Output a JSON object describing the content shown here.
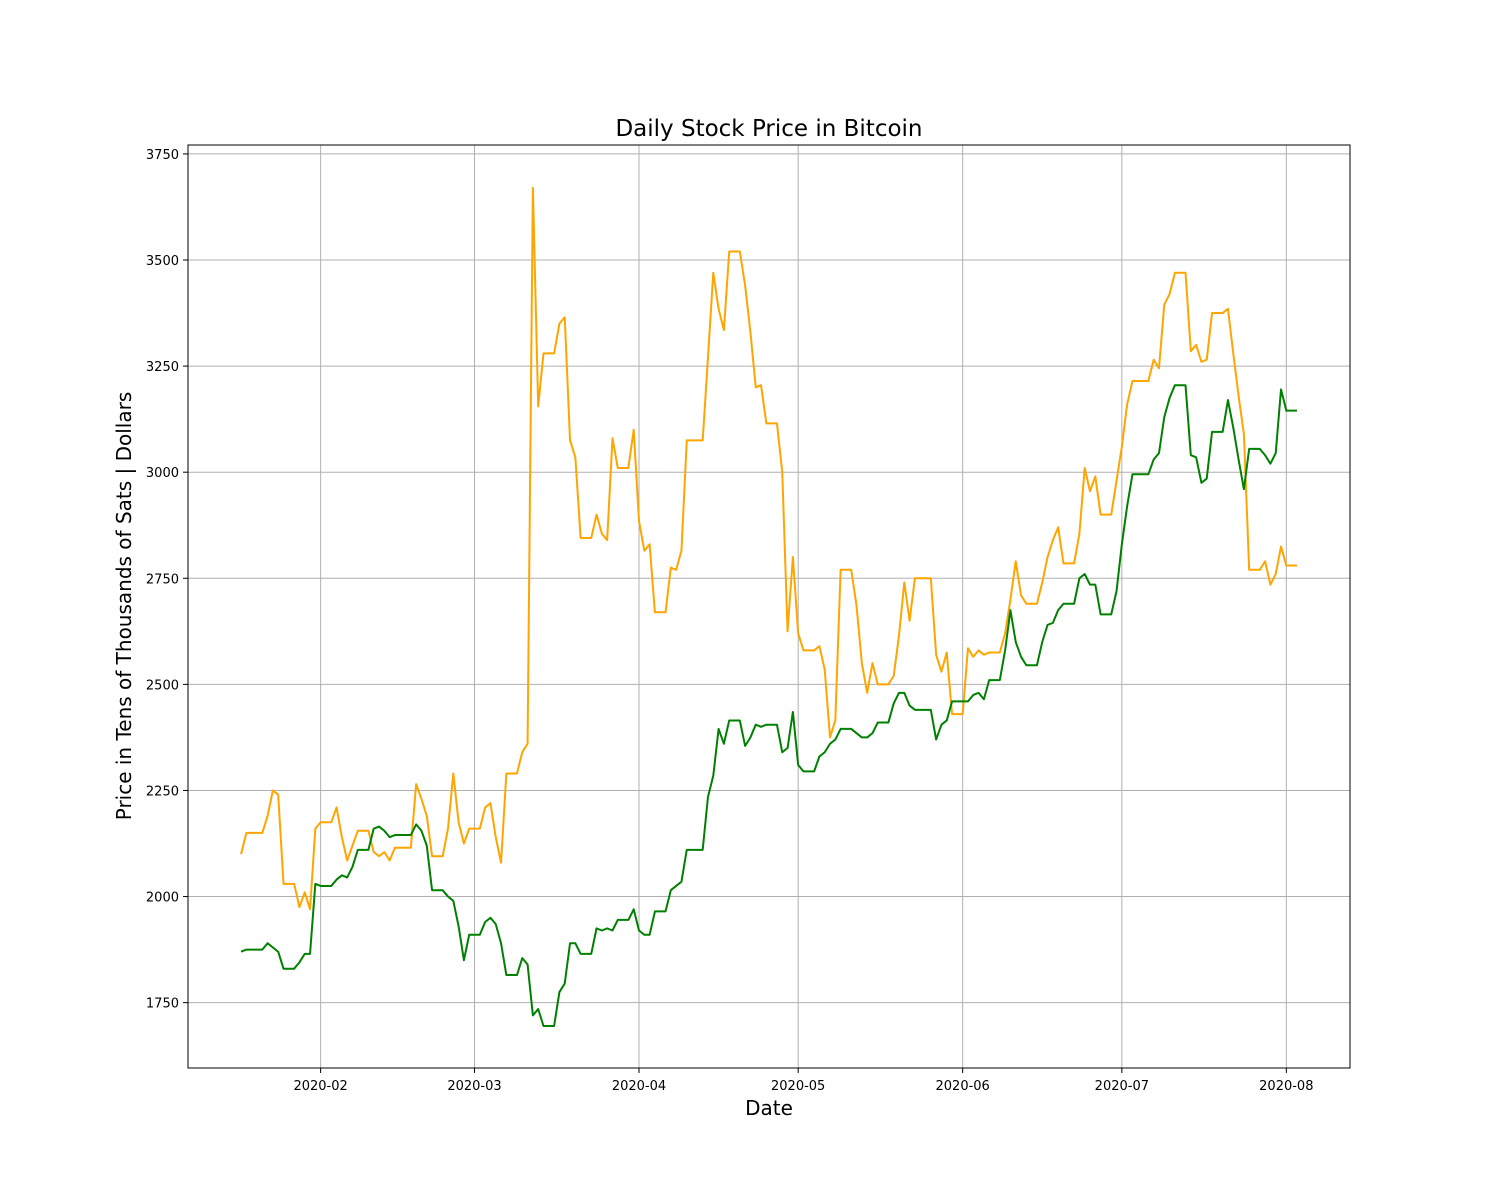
{
  "chart_data": {
    "type": "line",
    "title": "Daily Stock Price in Bitcoin",
    "x_label": "Date",
    "y_label": "Price in Tens of Thousands of Sats | Dollars",
    "x": [
      "2020-01-17",
      "2020-01-18",
      "2020-01-19",
      "2020-01-20",
      "2020-01-21",
      "2020-01-22",
      "2020-01-23",
      "2020-01-24",
      "2020-01-25",
      "2020-01-26",
      "2020-01-27",
      "2020-01-28",
      "2020-01-29",
      "2020-01-30",
      "2020-01-31",
      "2020-02-01",
      "2020-02-02",
      "2020-02-03",
      "2020-02-04",
      "2020-02-05",
      "2020-02-06",
      "2020-02-07",
      "2020-02-08",
      "2020-02-09",
      "2020-02-10",
      "2020-02-11",
      "2020-02-12",
      "2020-02-13",
      "2020-02-14",
      "2020-02-15",
      "2020-02-16",
      "2020-02-17",
      "2020-02-18",
      "2020-02-19",
      "2020-02-20",
      "2020-02-21",
      "2020-02-22",
      "2020-02-23",
      "2020-02-24",
      "2020-02-25",
      "2020-02-26",
      "2020-02-27",
      "2020-02-28",
      "2020-02-29",
      "2020-03-01",
      "2020-03-02",
      "2020-03-03",
      "2020-03-04",
      "2020-03-05",
      "2020-03-06",
      "2020-03-07",
      "2020-03-08",
      "2020-03-09",
      "2020-03-10",
      "2020-03-11",
      "2020-03-12",
      "2020-03-13",
      "2020-03-14",
      "2020-03-15",
      "2020-03-16",
      "2020-03-17",
      "2020-03-18",
      "2020-03-19",
      "2020-03-20",
      "2020-03-21",
      "2020-03-22",
      "2020-03-23",
      "2020-03-24",
      "2020-03-25",
      "2020-03-26",
      "2020-03-27",
      "2020-03-28",
      "2020-03-29",
      "2020-03-30",
      "2020-03-31",
      "2020-04-01",
      "2020-04-02",
      "2020-04-03",
      "2020-04-04",
      "2020-04-05",
      "2020-04-06",
      "2020-04-07",
      "2020-04-08",
      "2020-04-09",
      "2020-04-10",
      "2020-04-11",
      "2020-04-12",
      "2020-04-13",
      "2020-04-14",
      "2020-04-15",
      "2020-04-16",
      "2020-04-17",
      "2020-04-18",
      "2020-04-19",
      "2020-04-20",
      "2020-04-21",
      "2020-04-22",
      "2020-04-23",
      "2020-04-24",
      "2020-04-25",
      "2020-04-26",
      "2020-04-27",
      "2020-04-28",
      "2020-04-29",
      "2020-04-30",
      "2020-05-01",
      "2020-05-02",
      "2020-05-03",
      "2020-05-04",
      "2020-05-05",
      "2020-05-06",
      "2020-05-07",
      "2020-05-08",
      "2020-05-09",
      "2020-05-10",
      "2020-05-11",
      "2020-05-12",
      "2020-05-13",
      "2020-05-14",
      "2020-05-15",
      "2020-05-16",
      "2020-05-17",
      "2020-05-18",
      "2020-05-19",
      "2020-05-20",
      "2020-05-21",
      "2020-05-22",
      "2020-05-23",
      "2020-05-24",
      "2020-05-25",
      "2020-05-26",
      "2020-05-27",
      "2020-05-28",
      "2020-05-29",
      "2020-05-30",
      "2020-05-31",
      "2020-06-01",
      "2020-06-02",
      "2020-06-03",
      "2020-06-04",
      "2020-06-05",
      "2020-06-06",
      "2020-06-07",
      "2020-06-08",
      "2020-06-09",
      "2020-06-10",
      "2020-06-11",
      "2020-06-12",
      "2020-06-13",
      "2020-06-14",
      "2020-06-15",
      "2020-06-16",
      "2020-06-17",
      "2020-06-18",
      "2020-06-19",
      "2020-06-20",
      "2020-06-21",
      "2020-06-22",
      "2020-06-23",
      "2020-06-24",
      "2020-06-25",
      "2020-06-26",
      "2020-06-27",
      "2020-06-28",
      "2020-06-29",
      "2020-06-30",
      "2020-07-01",
      "2020-07-02",
      "2020-07-03",
      "2020-07-04",
      "2020-07-05",
      "2020-07-06",
      "2020-07-07",
      "2020-07-08",
      "2020-07-09",
      "2020-07-10",
      "2020-07-11",
      "2020-07-12",
      "2020-07-13",
      "2020-07-14",
      "2020-07-15",
      "2020-07-16",
      "2020-07-17",
      "2020-07-18",
      "2020-07-19",
      "2020-07-20",
      "2020-07-21",
      "2020-07-22",
      "2020-07-23",
      "2020-07-24",
      "2020-07-25",
      "2020-07-26",
      "2020-07-27",
      "2020-07-28",
      "2020-07-29",
      "2020-07-30",
      "2020-07-31",
      "2020-08-01",
      "2020-08-02",
      "2020-08-03"
    ],
    "series": [
      {
        "color": "orange",
        "values": [
          2100,
          2150,
          2150,
          2150,
          2150,
          2190,
          2250,
          2240,
          2030,
          2030,
          2030,
          1975,
          2010,
          1970,
          2160,
          2175,
          2175,
          2175,
          2210,
          2140,
          2085,
          2120,
          2155,
          2155,
          2155,
          2105,
          2095,
          2105,
          2085,
          2115,
          2115,
          2115,
          2115,
          2265,
          2230,
          2190,
          2095,
          2095,
          2095,
          2160,
          2290,
          2175,
          2125,
          2160,
          2160,
          2160,
          2210,
          2220,
          2140,
          2080,
          2290,
          2290,
          2290,
          2340,
          2360,
          3670,
          3155,
          3280,
          3280,
          3280,
          3350,
          3365,
          3075,
          3035,
          2845,
          2845,
          2845,
          2900,
          2855,
          2840,
          3080,
          3010,
          3010,
          3010,
          3100,
          2885,
          2815,
          2830,
          2670,
          2670,
          2670,
          2775,
          2770,
          2815,
          3075,
          3075,
          3075,
          3075,
          3270,
          3470,
          3385,
          3335,
          3520,
          3520,
          3520,
          3440,
          3330,
          3200,
          3205,
          3115,
          3115,
          3115,
          3000,
          2625,
          2800,
          2620,
          2580,
          2580,
          2580,
          2590,
          2535,
          2375,
          2415,
          2770,
          2770,
          2770,
          2685,
          2550,
          2480,
          2550,
          2500,
          2500,
          2500,
          2520,
          2615,
          2740,
          2650,
          2750,
          2750,
          2750,
          2750,
          2570,
          2530,
          2575,
          2430,
          2430,
          2430,
          2585,
          2565,
          2580,
          2570,
          2575,
          2575,
          2575,
          2620,
          2700,
          2790,
          2710,
          2690,
          2690,
          2690,
          2740,
          2800,
          2840,
          2870,
          2785,
          2785,
          2785,
          2855,
          3010,
          2955,
          2990,
          2900,
          2900,
          2900,
          2980,
          3060,
          3160,
          3215,
          3215,
          3215,
          3215,
          3265,
          3245,
          3395,
          3420,
          3470,
          3470,
          3470,
          3285,
          3300,
          3260,
          3265,
          3375,
          3375,
          3375,
          3385,
          3280,
          3180,
          3090,
          2770,
          2770,
          2770,
          2790,
          2735,
          2760,
          2825,
          2780,
          2780,
          2780
        ]
      },
      {
        "color": "green",
        "values": [
          1870,
          1875,
          1875,
          1875,
          1875,
          1890,
          1880,
          1870,
          1830,
          1830,
          1830,
          1845,
          1865,
          1865,
          2030,
          2025,
          2025,
          2025,
          2040,
          2050,
          2045,
          2070,
          2110,
          2110,
          2110,
          2160,
          2165,
          2155,
          2140,
          2145,
          2145,
          2145,
          2145,
          2170,
          2155,
          2120,
          2015,
          2015,
          2015,
          2000,
          1990,
          1930,
          1850,
          1910,
          1910,
          1910,
          1940,
          1950,
          1935,
          1890,
          1815,
          1815,
          1815,
          1855,
          1840,
          1720,
          1735,
          1695,
          1695,
          1695,
          1775,
          1795,
          1890,
          1890,
          1865,
          1865,
          1865,
          1925,
          1920,
          1925,
          1920,
          1945,
          1945,
          1945,
          1970,
          1920,
          1910,
          1910,
          1965,
          1965,
          1965,
          2015,
          2025,
          2035,
          2110,
          2110,
          2110,
          2110,
          2235,
          2285,
          2395,
          2360,
          2415,
          2415,
          2415,
          2355,
          2375,
          2405,
          2400,
          2405,
          2405,
          2405,
          2340,
          2350,
          2435,
          2310,
          2295,
          2295,
          2295,
          2330,
          2340,
          2360,
          2370,
          2395,
          2395,
          2395,
          2385,
          2375,
          2375,
          2385,
          2410,
          2410,
          2410,
          2455,
          2480,
          2480,
          2450,
          2440,
          2440,
          2440,
          2440,
          2370,
          2405,
          2415,
          2460,
          2460,
          2460,
          2460,
          2475,
          2480,
          2465,
          2510,
          2510,
          2510,
          2580,
          2675,
          2600,
          2565,
          2545,
          2545,
          2545,
          2600,
          2640,
          2645,
          2675,
          2690,
          2690,
          2690,
          2750,
          2760,
          2735,
          2735,
          2665,
          2665,
          2665,
          2720,
          2830,
          2920,
          2995,
          2995,
          2995,
          2995,
          3030,
          3045,
          3130,
          3175,
          3205,
          3205,
          3205,
          3040,
          3035,
          2975,
          2985,
          3095,
          3095,
          3095,
          3170,
          3105,
          3030,
          2960,
          3055,
          3055,
          3055,
          3040,
          3020,
          3045,
          3195,
          3145,
          3145,
          3145
        ]
      }
    ],
    "xlim": [
      "2020-01-07",
      "2020-08-13"
    ],
    "xticks": [
      {
        "value": "2020-02-01",
        "label": "2020-02"
      },
      {
        "value": "2020-03-01",
        "label": "2020-03"
      },
      {
        "value": "2020-04-01",
        "label": "2020-04"
      },
      {
        "value": "2020-05-01",
        "label": "2020-05"
      },
      {
        "value": "2020-06-01",
        "label": "2020-06"
      },
      {
        "value": "2020-07-01",
        "label": "2020-07"
      },
      {
        "value": "2020-08-01",
        "label": "2020-08"
      }
    ],
    "ylim": [
      1596,
      3771
    ],
    "yticks": [
      1750,
      2000,
      2250,
      2500,
      2750,
      3000,
      3250,
      3500,
      3750
    ],
    "grid": true
  }
}
